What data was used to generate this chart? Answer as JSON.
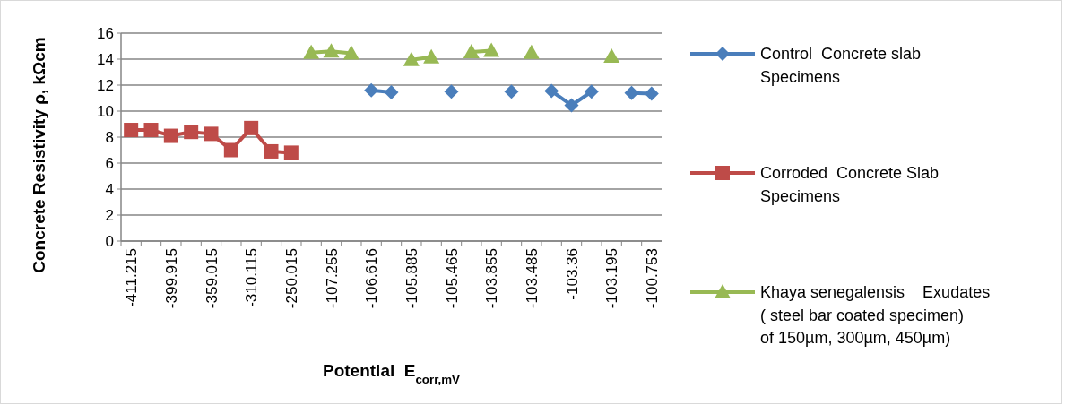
{
  "chart_data": {
    "type": "line",
    "xlabel": "Potential  E$_{corr,mV}$",
    "ylabel": "Concrete Resistivity ρ, kΩcm",
    "categories": [
      "-411.215",
      null,
      "-399.915",
      null,
      "-359.015",
      null,
      "-310.115",
      null,
      "-250.015",
      null,
      "-107.255",
      null,
      "-106.616",
      null,
      "-105.885",
      null,
      "-105.465",
      null,
      "-103.855",
      null,
      "-103.485",
      null,
      "-103.36",
      null,
      "-103.195",
      null,
      "-100.753"
    ],
    "series": [
      {
        "name": "Control  Concrete slab Specimens",
        "color": "#4a7ebb",
        "marker": "diamond",
        "values": [
          null,
          null,
          null,
          null,
          null,
          null,
          null,
          null,
          null,
          null,
          null,
          null,
          11.6,
          11.45,
          null,
          null,
          11.5,
          null,
          null,
          11.5,
          null,
          11.55,
          10.45,
          11.5,
          null,
          11.4,
          11.35
        ]
      },
      {
        "name": "Corroded  Concrete Slab Specimens",
        "color": "#be4b48",
        "marker": "square",
        "values": [
          8.55,
          8.55,
          8.1,
          8.4,
          8.25,
          7.0,
          8.7,
          6.9,
          6.8,
          null,
          null,
          null,
          null,
          null,
          null,
          null,
          null,
          null,
          null,
          null,
          null,
          null,
          null,
          null,
          null,
          null,
          null
        ]
      },
      {
        "name": "Khaya senegalensis    Exudates ( steel bar coated specimen) of 150µm, 300µm, 450µm)",
        "color": "#98b954",
        "marker": "triangle",
        "values": [
          null,
          null,
          null,
          null,
          null,
          null,
          null,
          null,
          null,
          14.5,
          14.6,
          14.45,
          null,
          null,
          13.95,
          14.15,
          null,
          14.55,
          14.65,
          null,
          14.5,
          null,
          null,
          null,
          14.2,
          null,
          null
        ]
      }
    ],
    "ylim": [
      0,
      16
    ],
    "yticks": [
      0,
      2,
      4,
      6,
      8,
      10,
      12,
      14,
      16
    ],
    "grid": "y",
    "legend": "right",
    "line_style": "solid"
  }
}
